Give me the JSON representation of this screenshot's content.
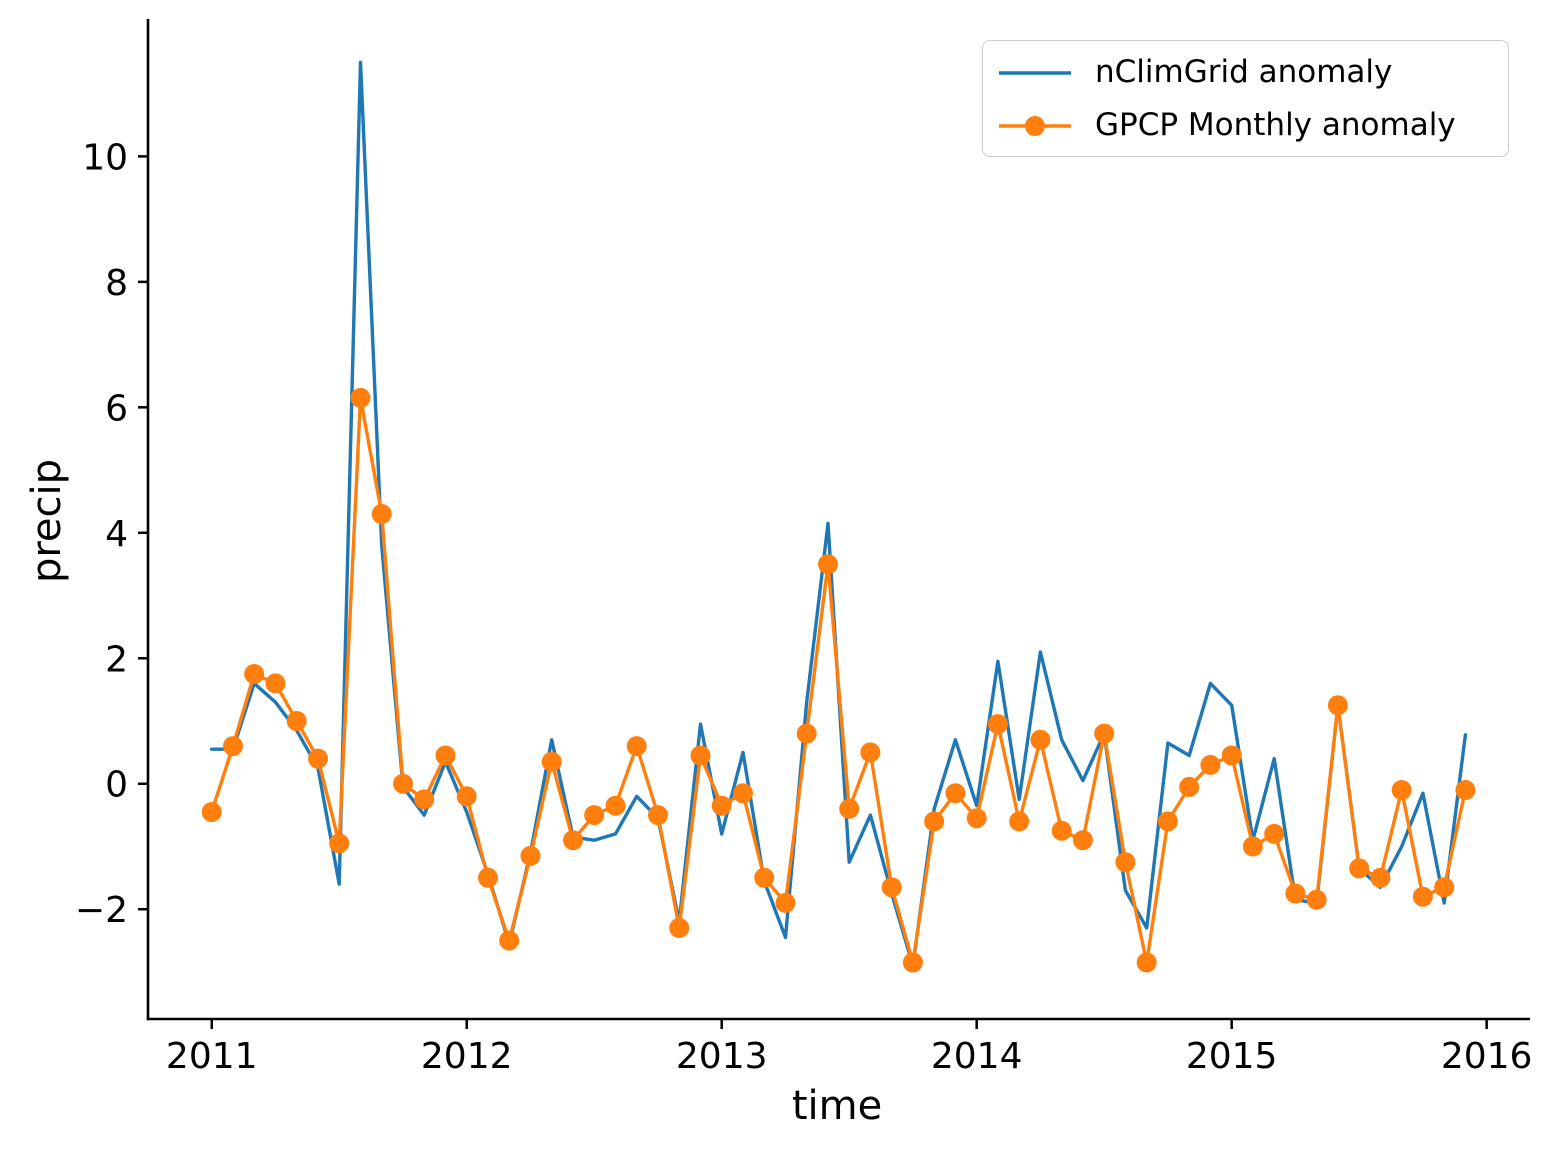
{
  "figure": {
    "background": "#ffffff",
    "axis_color": "#000000"
  },
  "axes": {
    "x_label": "time",
    "y_label": "precip",
    "x_ticks": [
      {
        "value": 2011,
        "label": "2011"
      },
      {
        "value": 2012,
        "label": "2012"
      },
      {
        "value": 2013,
        "label": "2013"
      },
      {
        "value": 2014,
        "label": "2014"
      },
      {
        "value": 2015,
        "label": "2015"
      },
      {
        "value": 2016,
        "label": "2016"
      }
    ],
    "y_ticks": [
      {
        "value": -2,
        "label": "−2"
      },
      {
        "value": 0,
        "label": "0"
      },
      {
        "value": 2,
        "label": "2"
      },
      {
        "value": 4,
        "label": "4"
      },
      {
        "value": 6,
        "label": "6"
      },
      {
        "value": 8,
        "label": "8"
      },
      {
        "value": 10,
        "label": "10"
      }
    ]
  },
  "legend": {
    "items": [
      {
        "label": "nClimGrid anomaly",
        "color": "#1f77b4",
        "marker": "none"
      },
      {
        "label": "GPCP Monthly anomaly",
        "color": "#ff7f0e",
        "marker": "circle"
      }
    ]
  },
  "chart_data": {
    "type": "line",
    "title": "",
    "xlabel": "time",
    "ylabel": "precip",
    "xlim": [
      2010.75,
      2016.17
    ],
    "ylim": [
      -3.75,
      12.19
    ],
    "grid": false,
    "legend_position": "upper right",
    "x_months": [
      "2011-01",
      "2011-02",
      "2011-03",
      "2011-04",
      "2011-05",
      "2011-06",
      "2011-07",
      "2011-08",
      "2011-09",
      "2011-10",
      "2011-11",
      "2011-12",
      "2012-01",
      "2012-02",
      "2012-03",
      "2012-04",
      "2012-05",
      "2012-06",
      "2012-07",
      "2012-08",
      "2012-09",
      "2012-10",
      "2012-11",
      "2012-12",
      "2013-01",
      "2013-02",
      "2013-03",
      "2013-04",
      "2013-05",
      "2013-06",
      "2013-07",
      "2013-08",
      "2013-09",
      "2013-10",
      "2013-11",
      "2013-12",
      "2014-01",
      "2014-02",
      "2014-03",
      "2014-04",
      "2014-05",
      "2014-06",
      "2014-07",
      "2014-08",
      "2014-09",
      "2014-10",
      "2014-11",
      "2014-12",
      "2015-01",
      "2015-02",
      "2015-03",
      "2015-04",
      "2015-05",
      "2015-06",
      "2015-07",
      "2015-08",
      "2015-09",
      "2015-10",
      "2015-11",
      "2015-12"
    ],
    "series": [
      {
        "name": "nClimGrid anomaly",
        "color": "#1f77b4",
        "marker": "none",
        "values": [
          0.55,
          0.55,
          1.6,
          1.3,
          0.85,
          0.25,
          -1.6,
          11.5,
          3.8,
          -0.05,
          -0.5,
          0.35,
          -0.45,
          -1.45,
          -2.55,
          -1.1,
          0.7,
          -0.85,
          -0.9,
          -0.8,
          -0.2,
          -0.55,
          -2.2,
          0.95,
          -0.8,
          0.5,
          -1.55,
          -2.45,
          1.3,
          4.15,
          -1.25,
          -0.5,
          -1.75,
          -2.9,
          -0.4,
          0.7,
          -0.35,
          1.95,
          -0.25,
          2.1,
          0.7,
          0.05,
          0.8,
          -1.7,
          -2.3,
          0.65,
          0.45,
          1.6,
          1.25,
          -0.9,
          0.4,
          -1.85,
          -1.9,
          1.25,
          -1.35,
          -1.65,
          -1.0,
          -0.15,
          -1.9,
          0.78
        ]
      },
      {
        "name": "GPCP Monthly anomaly",
        "color": "#ff7f0e",
        "marker": "circle",
        "values": [
          -0.45,
          0.6,
          1.75,
          1.6,
          1.0,
          0.4,
          -0.95,
          6.15,
          4.3,
          0.0,
          -0.25,
          0.45,
          -0.2,
          -1.5,
          -2.5,
          -1.15,
          0.35,
          -0.9,
          -0.5,
          -0.35,
          0.6,
          -0.5,
          -2.3,
          0.45,
          -0.35,
          -0.15,
          -1.5,
          -1.9,
          0.8,
          3.5,
          -0.4,
          0.5,
          -1.65,
          -2.85,
          -0.6,
          -0.15,
          -0.55,
          0.95,
          -0.6,
          0.7,
          -0.75,
          -0.9,
          0.8,
          -1.25,
          -2.85,
          -0.6,
          -0.05,
          0.3,
          0.45,
          -1.0,
          -0.8,
          -1.75,
          -1.85,
          1.25,
          -1.35,
          -1.5,
          -0.1,
          -1.8,
          -1.65,
          -0.1
        ]
      }
    ]
  }
}
